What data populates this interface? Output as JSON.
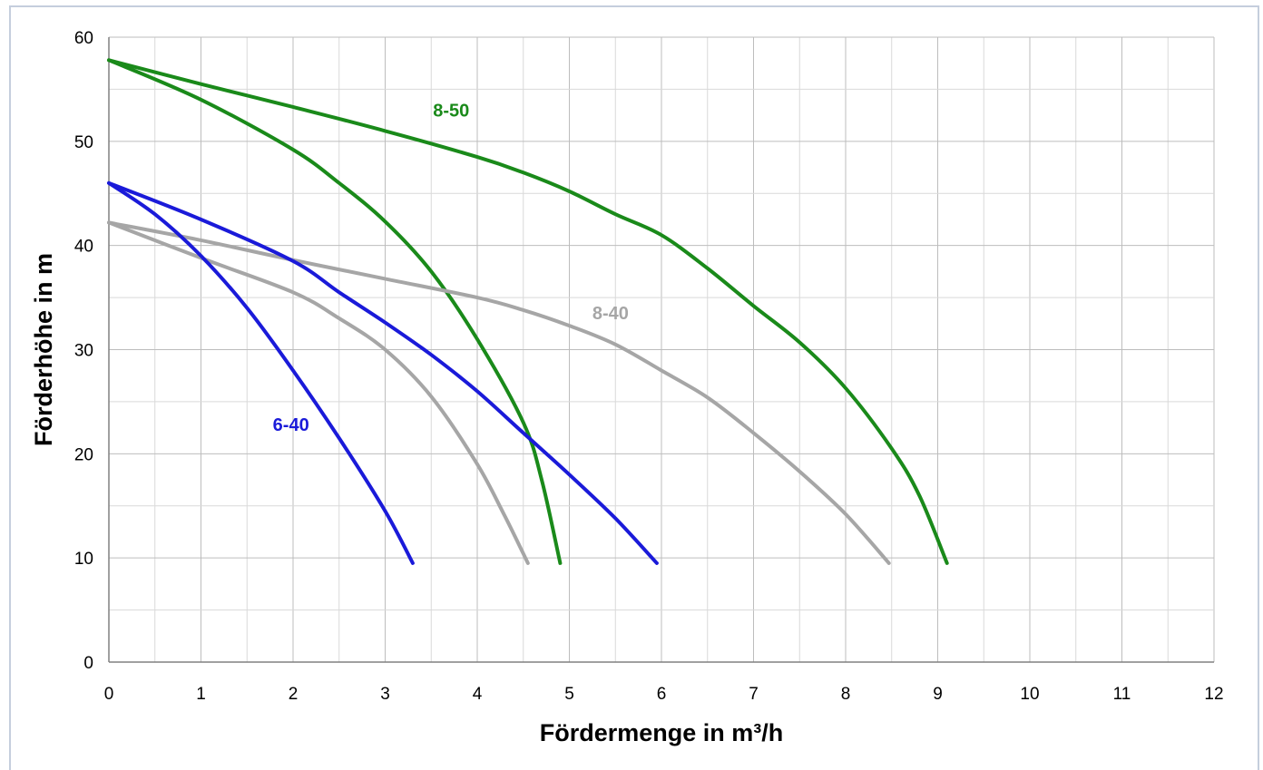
{
  "chart_data": {
    "type": "line",
    "title": "",
    "xlabel": "Fördermenge in m³/h",
    "ylabel": "Förderhöhe in m",
    "xlim": [
      0,
      12
    ],
    "ylim": [
      0,
      60
    ],
    "x_major_ticks": [
      "0",
      "1",
      "2",
      "3",
      "4",
      "5",
      "6",
      "7",
      "8",
      "9",
      "10",
      "11",
      "12"
    ],
    "y_major_ticks": [
      "0",
      "10",
      "20",
      "30",
      "40",
      "50",
      "60"
    ],
    "x_minor_step": 0.5,
    "y_minor_step": 5,
    "grid": true,
    "legend": "none",
    "series": [
      {
        "group": "8-50",
        "color": "#1a8a1a",
        "points": [
          [
            0,
            57.8
          ],
          [
            1,
            54
          ],
          [
            2,
            49.2
          ],
          [
            2.5,
            46
          ],
          [
            3,
            42.3
          ],
          [
            3.5,
            37.5
          ],
          [
            4,
            31
          ],
          [
            4.5,
            23
          ],
          [
            4.7,
            17.5
          ],
          [
            4.9,
            9.5
          ]
        ]
      },
      {
        "group": "8-50",
        "color": "#1a8a1a",
        "points": [
          [
            0,
            57.8
          ],
          [
            1,
            55.5
          ],
          [
            2,
            53.3
          ],
          [
            3,
            51
          ],
          [
            4,
            48.5
          ],
          [
            4.5,
            47
          ],
          [
            5,
            45.2
          ],
          [
            5.5,
            43
          ],
          [
            6,
            41
          ],
          [
            6.5,
            37.8
          ],
          [
            7,
            34.2
          ],
          [
            7.5,
            30.7
          ],
          [
            8,
            26.3
          ],
          [
            8.5,
            20.5
          ],
          [
            8.8,
            16
          ],
          [
            9.1,
            9.5
          ]
        ]
      },
      {
        "group": "8-40",
        "color": "#a6a6a6",
        "points": [
          [
            0,
            42.2
          ],
          [
            1,
            38.8
          ],
          [
            2,
            35.5
          ],
          [
            2.5,
            33
          ],
          [
            3,
            30
          ],
          [
            3.5,
            25.5
          ],
          [
            4,
            19
          ],
          [
            4.3,
            14
          ],
          [
            4.55,
            9.5
          ]
        ]
      },
      {
        "group": "8-40",
        "color": "#a6a6a6",
        "points": [
          [
            0,
            42.2
          ],
          [
            1,
            40.5
          ],
          [
            2,
            38.6
          ],
          [
            3,
            36.8
          ],
          [
            4,
            35
          ],
          [
            4.5,
            33.8
          ],
          [
            5,
            32.3
          ],
          [
            5.5,
            30.5
          ],
          [
            6,
            28
          ],
          [
            6.5,
            25.4
          ],
          [
            7,
            22
          ],
          [
            7.5,
            18.3
          ],
          [
            8,
            14.2
          ],
          [
            8.47,
            9.5
          ]
        ]
      },
      {
        "group": "6-40",
        "color": "#1a1ad9",
        "points": [
          [
            0,
            46
          ],
          [
            0.5,
            43
          ],
          [
            1,
            39
          ],
          [
            1.5,
            34
          ],
          [
            2,
            28
          ],
          [
            2.5,
            21.5
          ],
          [
            3,
            14.5
          ],
          [
            3.3,
            9.5
          ]
        ]
      },
      {
        "group": "6-40",
        "color": "#1a1ad9",
        "points": [
          [
            0,
            46
          ],
          [
            1,
            42.5
          ],
          [
            2,
            38.5
          ],
          [
            2.5,
            35.5
          ],
          [
            3,
            32.6
          ],
          [
            3.5,
            29.5
          ],
          [
            4,
            26
          ],
          [
            4.5,
            22
          ],
          [
            5,
            18
          ],
          [
            5.5,
            13.8
          ],
          [
            5.95,
            9.5
          ]
        ]
      }
    ],
    "annotations": [
      {
        "text": "8-50",
        "x": 3.52,
        "y": 52.4,
        "color": "#1a8a1a"
      },
      {
        "text": "8-40",
        "x": 5.25,
        "y": 32.9,
        "color": "#a6a6a6"
      },
      {
        "text": "6-40",
        "x": 1.78,
        "y": 22.2,
        "color": "#1a1ad9"
      }
    ]
  }
}
